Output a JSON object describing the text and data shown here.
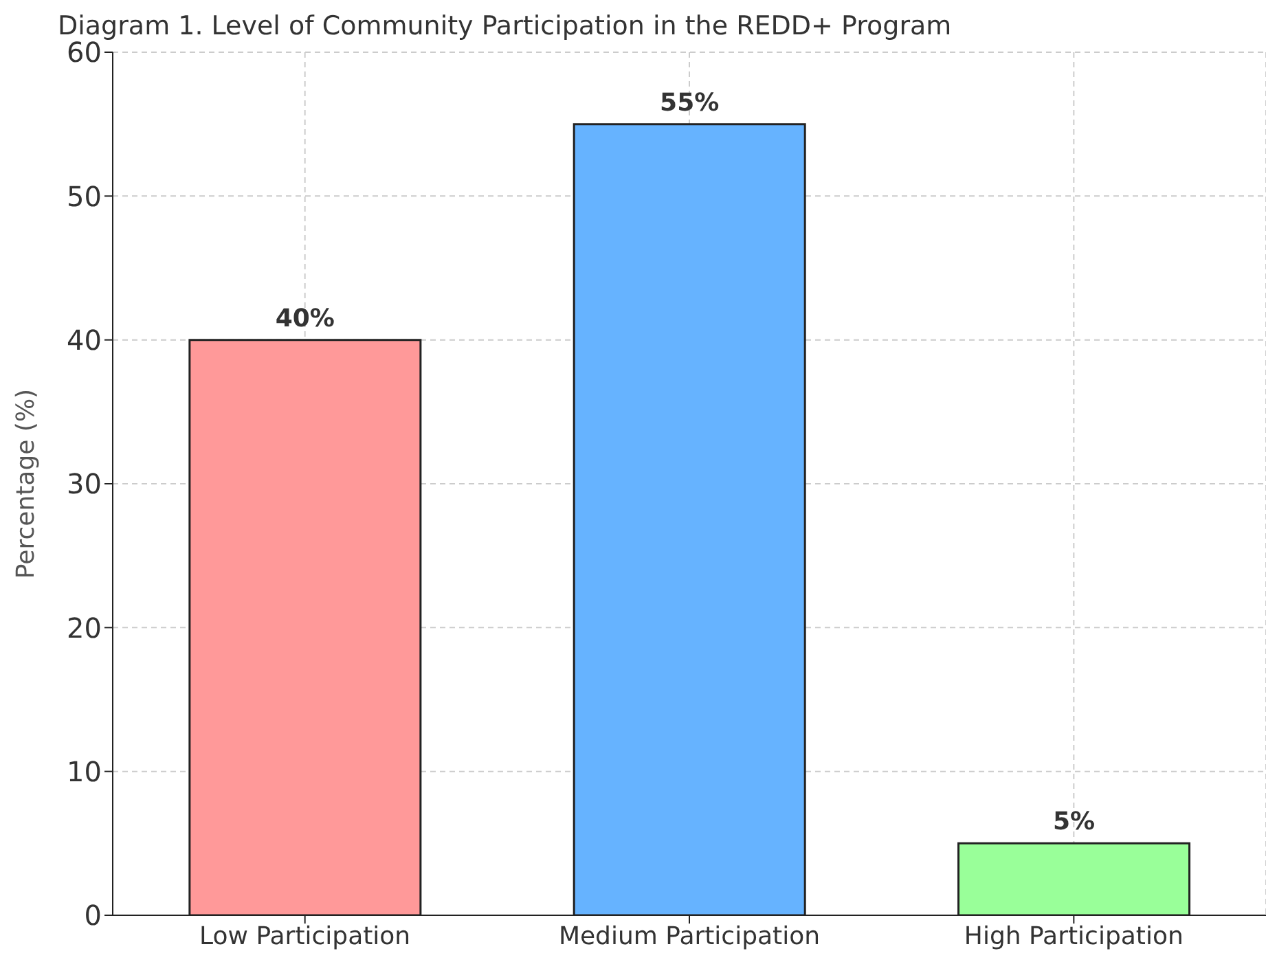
{
  "chart_data": {
    "type": "bar",
    "title": "Diagram 1. Level of Community Participation in the REDD+ Program",
    "ylabel": "Percentage (%)",
    "categories": [
      "Low Participation",
      "Medium Participation",
      "High Participation"
    ],
    "values": [
      40,
      55,
      5
    ],
    "colors": [
      "#ff9999",
      "#66b3ff",
      "#99ff99"
    ],
    "value_labels": [
      "40%",
      "55%",
      "5%"
    ],
    "ylim": [
      0,
      60
    ],
    "yticks": [
      0,
      10,
      20,
      30,
      40,
      50,
      60
    ],
    "grid": true
  }
}
